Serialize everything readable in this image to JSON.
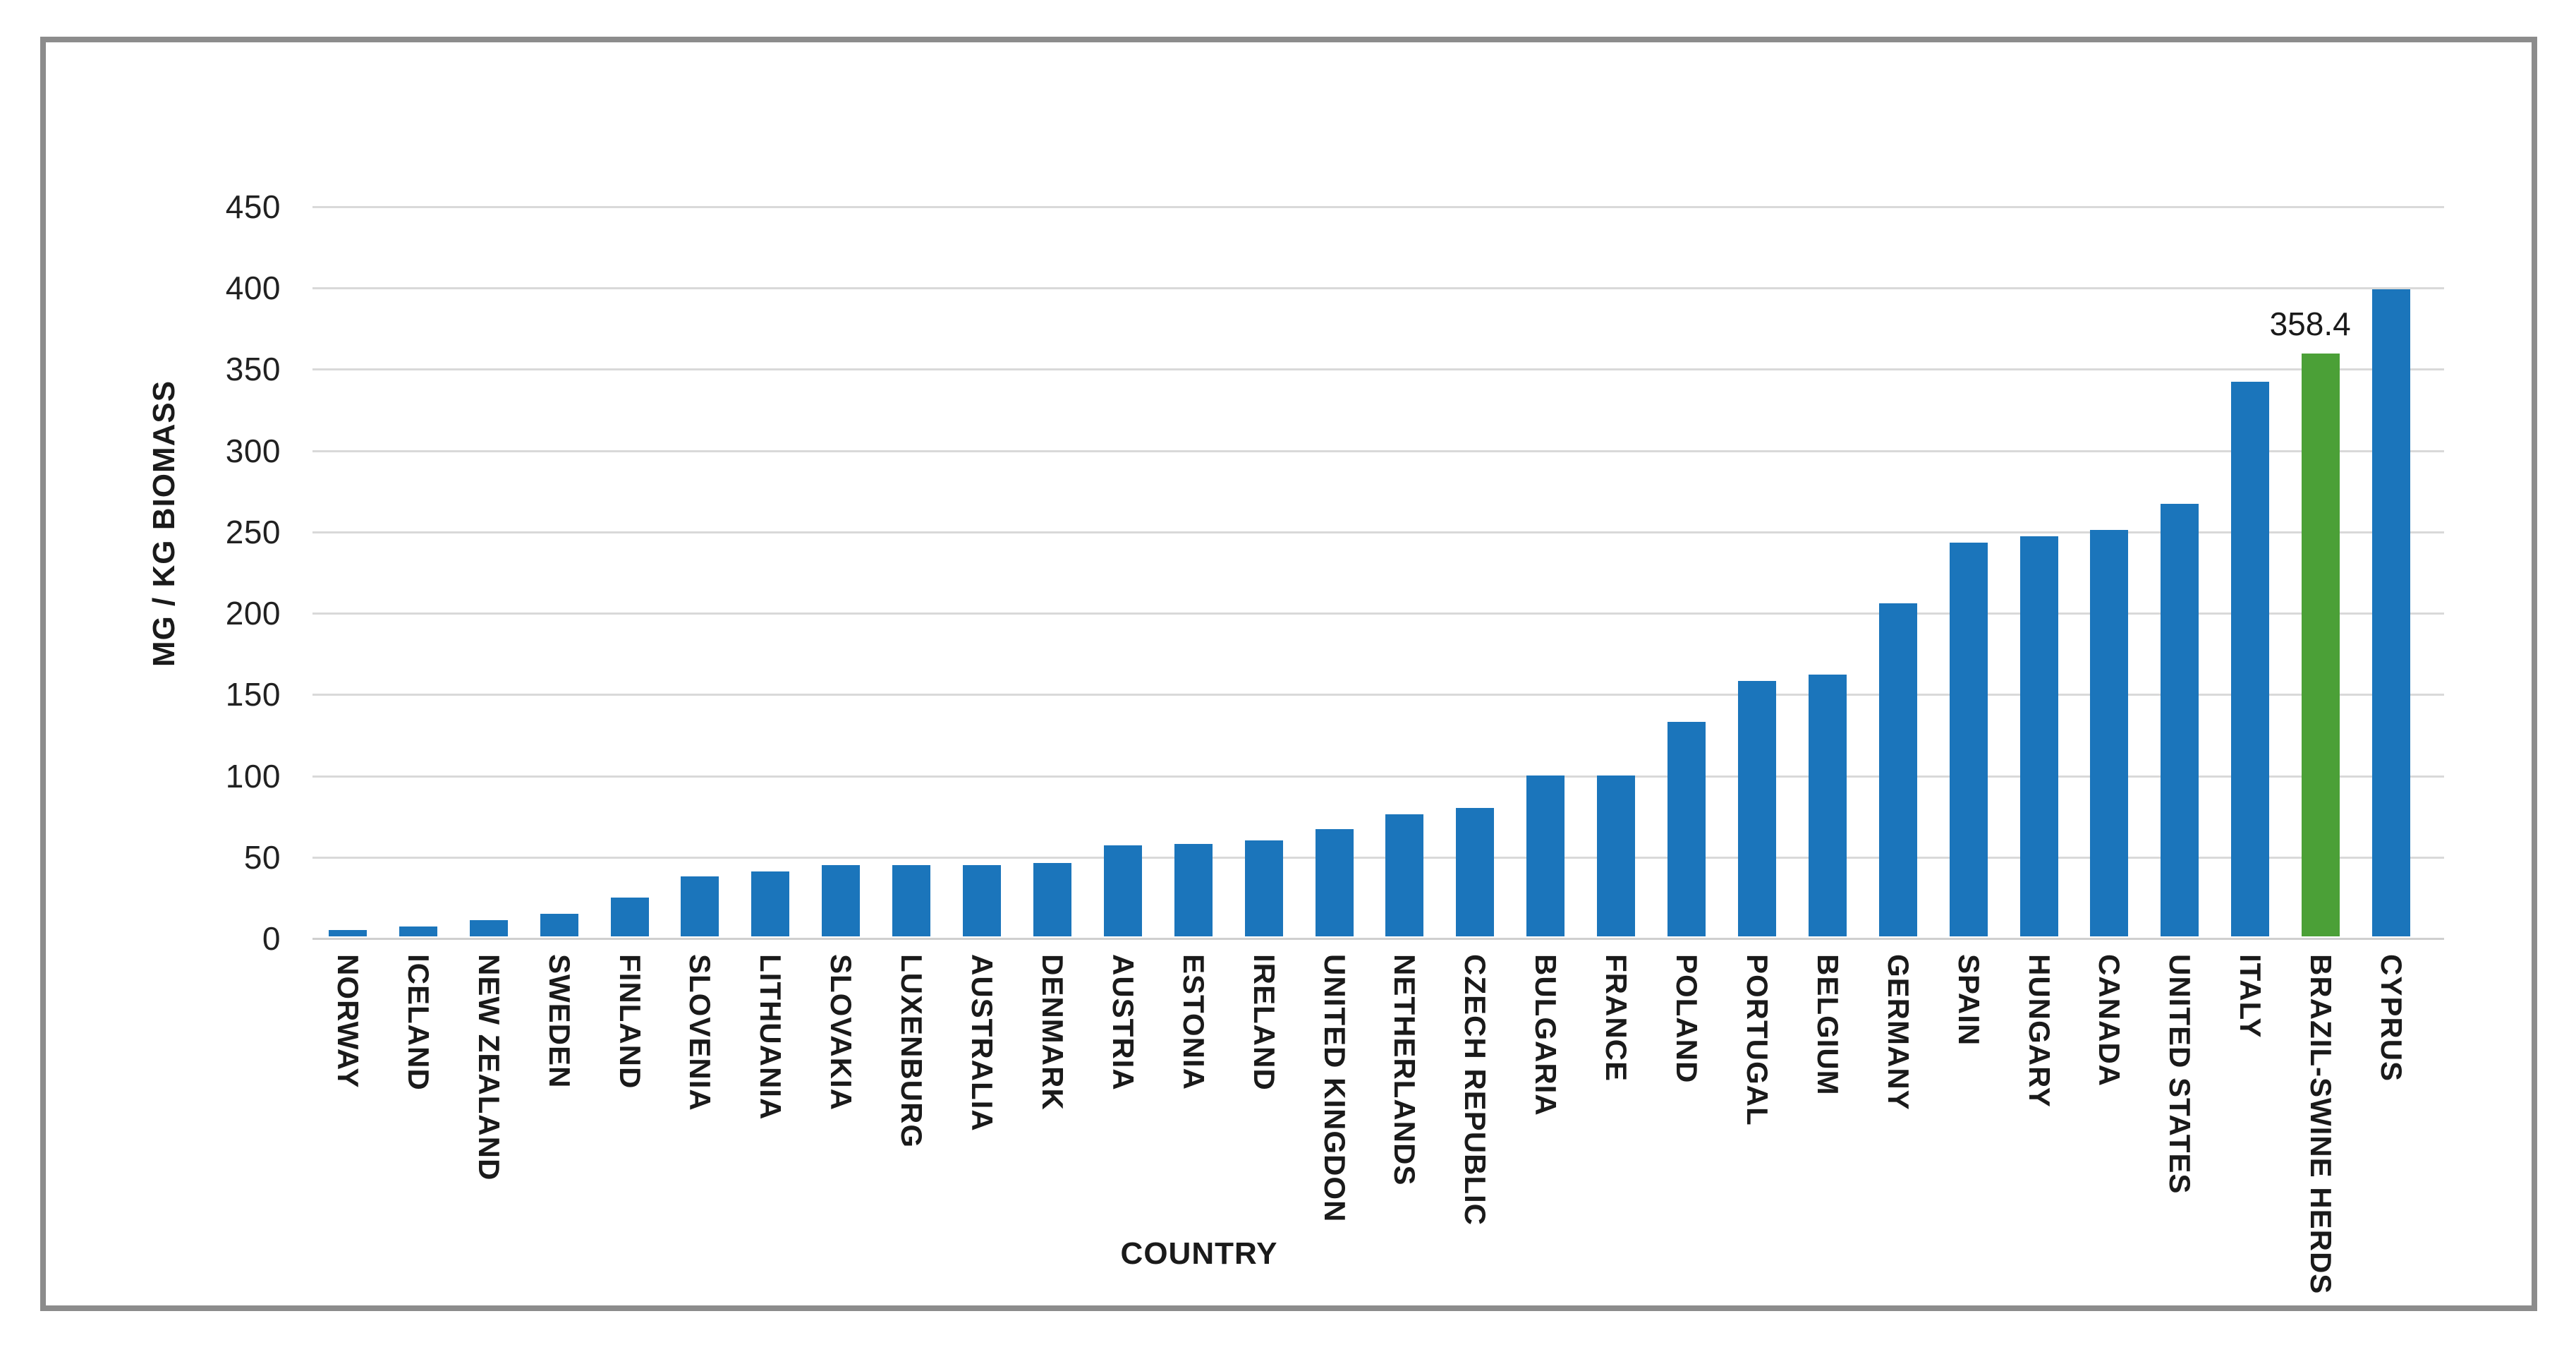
{
  "figure": {
    "background": "#ffffff",
    "frame_border_color": "#8c8c8c",
    "gridline_color": "#d9d9d9",
    "text_color": "#1a1a1a"
  },
  "chart_data": {
    "type": "bar",
    "title": "",
    "xlabel": "COUNTRY",
    "ylabel": "MG / KG BIOMASS",
    "ylim": [
      0,
      450
    ],
    "ytick_step": 50,
    "yticks": [
      450,
      400,
      350,
      300,
      250,
      200,
      150,
      100,
      50,
      0
    ],
    "grid": true,
    "legend_position": "none",
    "bar_color_default": "#1b75bb",
    "categories": [
      "NORWAY",
      "ICELAND",
      "NEW ZEALAND",
      "SWEDEN",
      "FINLAND",
      "SLOVENIA",
      "LITHUANIA",
      "SLOVAKIA",
      "LUXENBURG",
      "AUSTRALIA",
      "DENMARK",
      "AUSTRIA",
      "ESTONIA",
      "IRELAND",
      "UNITED KINGDON",
      "NETHERLANDS",
      "CZECH REPUBLIC",
      "BULGARIA",
      "FRANCE",
      "POLAND",
      "PORTUGAL",
      "BELGIUM",
      "GERMANY",
      "SPAIN",
      "HUNGARY",
      "CANADA",
      "UNITED STATES",
      "ITALY",
      "BRAZIL-SWINE HERDS",
      "CYPRUS"
    ],
    "values": [
      4,
      6,
      10,
      14,
      24,
      37,
      40,
      44,
      44,
      44,
      45,
      56,
      57,
      59,
      66,
      75,
      79,
      99,
      99,
      132,
      157,
      161,
      205,
      242,
      246,
      250,
      266,
      341,
      358.4,
      398
    ],
    "highlight": {
      "category": "BRAZIL-SWINE HERDS",
      "color": "#4ba037",
      "data_label": "358.4"
    }
  }
}
